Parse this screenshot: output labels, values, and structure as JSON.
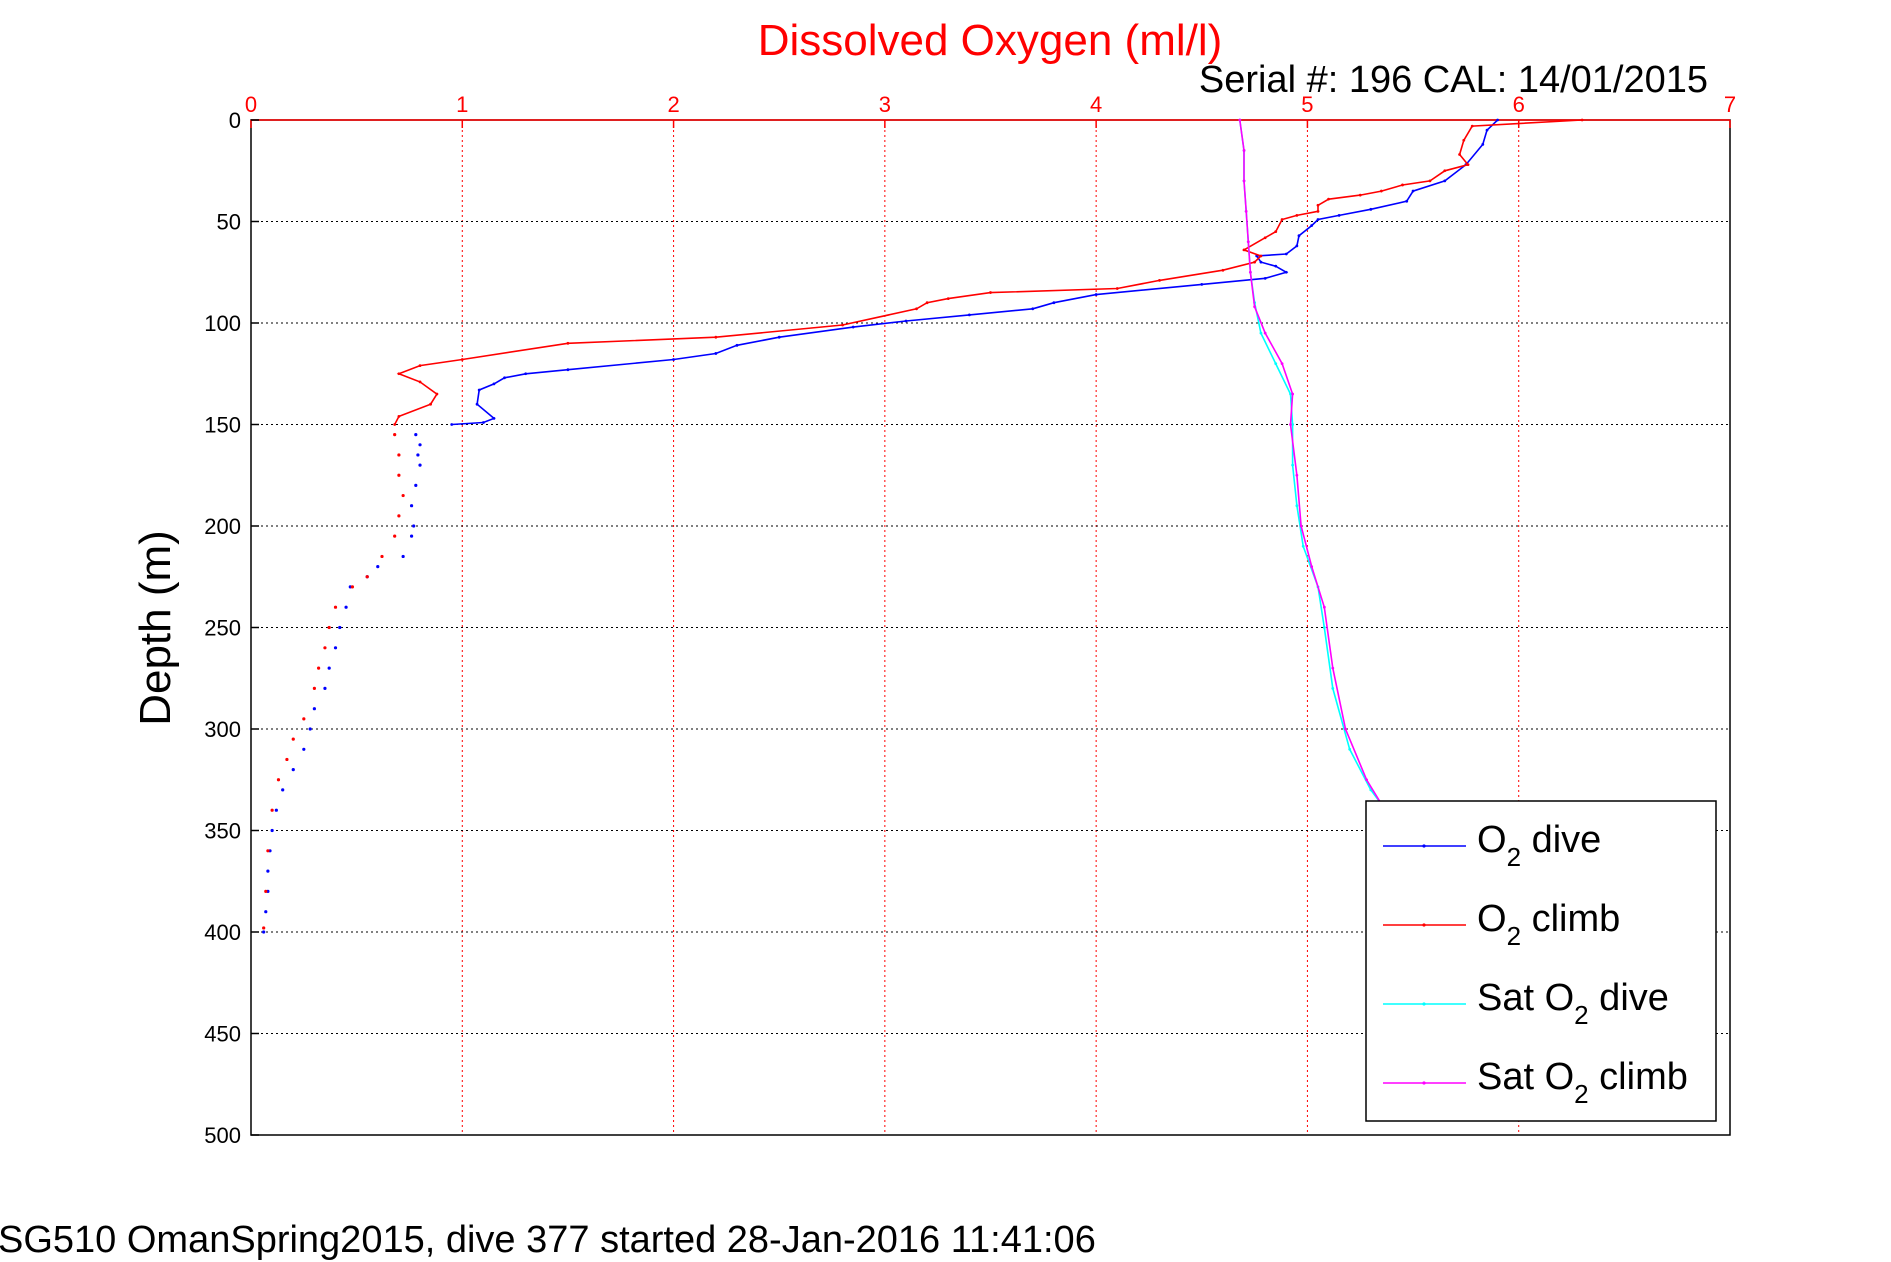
{
  "chart_data": {
    "type": "line",
    "title": "Dissolved Oxygen (ml/l)",
    "subtitle": "Serial #: 196  CAL: 14/01/2015",
    "ylabel": "Depth (m)",
    "xlabel": "",
    "xlim": [
      0,
      7
    ],
    "ylim": [
      0,
      500
    ],
    "y_reversed": true,
    "x_axis_position": "top",
    "grid": true,
    "legend_position": "bottom-right",
    "x_ticks": [
      0,
      1,
      2,
      3,
      4,
      5,
      6,
      7
    ],
    "y_ticks": [
      0,
      50,
      100,
      150,
      200,
      250,
      300,
      350,
      400,
      450,
      500
    ],
    "series": [
      {
        "name": "O2 dive",
        "legend_main": "O",
        "legend_sub": "2",
        "legend_rest": " dive",
        "color": "#0000ff",
        "style": "line",
        "points": [
          [
            5.9,
            0
          ],
          [
            5.85,
            5
          ],
          [
            5.83,
            12
          ],
          [
            5.75,
            22
          ],
          [
            5.65,
            30
          ],
          [
            5.5,
            35
          ],
          [
            5.47,
            40
          ],
          [
            5.3,
            44
          ],
          [
            5.15,
            47
          ],
          [
            5.05,
            49
          ],
          [
            5.02,
            52
          ],
          [
            4.96,
            57
          ],
          [
            4.95,
            62
          ],
          [
            4.9,
            66
          ],
          [
            4.76,
            67
          ],
          [
            4.78,
            70
          ],
          [
            4.85,
            72
          ],
          [
            4.9,
            75
          ],
          [
            4.8,
            78
          ],
          [
            4.5,
            81
          ],
          [
            4.0,
            86
          ],
          [
            3.8,
            90
          ],
          [
            3.7,
            93
          ],
          [
            3.4,
            96
          ],
          [
            3.1,
            99
          ],
          [
            2.85,
            102
          ],
          [
            2.5,
            107
          ],
          [
            2.3,
            111
          ],
          [
            2.2,
            115
          ],
          [
            2.0,
            118
          ],
          [
            1.5,
            123
          ],
          [
            1.3,
            125
          ],
          [
            1.2,
            127
          ],
          [
            1.15,
            130
          ],
          [
            1.08,
            133
          ],
          [
            1.07,
            140
          ],
          [
            1.15,
            147
          ],
          [
            1.1,
            149
          ],
          [
            0.95,
            150
          ]
        ]
      },
      {
        "name": "O2 dive",
        "color": "#0000ff",
        "style": "dots",
        "points": [
          [
            0.78,
            155
          ],
          [
            0.8,
            160
          ],
          [
            0.79,
            165
          ],
          [
            0.8,
            170
          ],
          [
            0.78,
            180
          ],
          [
            0.76,
            190
          ],
          [
            0.77,
            200
          ],
          [
            0.76,
            205
          ],
          [
            0.72,
            215
          ],
          [
            0.6,
            220
          ],
          [
            0.55,
            225
          ],
          [
            0.47,
            230
          ],
          [
            0.45,
            240
          ],
          [
            0.42,
            250
          ],
          [
            0.4,
            260
          ],
          [
            0.37,
            270
          ],
          [
            0.35,
            280
          ],
          [
            0.3,
            290
          ],
          [
            0.28,
            300
          ],
          [
            0.25,
            310
          ],
          [
            0.2,
            320
          ],
          [
            0.15,
            330
          ],
          [
            0.12,
            340
          ],
          [
            0.1,
            350
          ],
          [
            0.09,
            360
          ],
          [
            0.08,
            370
          ],
          [
            0.08,
            380
          ],
          [
            0.07,
            390
          ],
          [
            0.06,
            400
          ]
        ]
      },
      {
        "name": "O2 climb",
        "legend_main": "O",
        "legend_sub": "2",
        "legend_rest": " climb",
        "color": "#ff0000",
        "style": "line",
        "points": [
          [
            6.3,
            0
          ],
          [
            5.78,
            3
          ],
          [
            5.74,
            10
          ],
          [
            5.72,
            17
          ],
          [
            5.76,
            22
          ],
          [
            5.65,
            25
          ],
          [
            5.58,
            30
          ],
          [
            5.45,
            32
          ],
          [
            5.35,
            35
          ],
          [
            5.25,
            37
          ],
          [
            5.1,
            39
          ],
          [
            5.05,
            42
          ],
          [
            5.05,
            45
          ],
          [
            4.95,
            47
          ],
          [
            4.88,
            49
          ],
          [
            4.85,
            55
          ],
          [
            4.8,
            58
          ],
          [
            4.7,
            64
          ],
          [
            4.78,
            67
          ],
          [
            4.75,
            70
          ],
          [
            4.6,
            74
          ],
          [
            4.3,
            79
          ],
          [
            4.1,
            83
          ],
          [
            3.5,
            85
          ],
          [
            3.3,
            88
          ],
          [
            3.2,
            90
          ],
          [
            3.15,
            93
          ],
          [
            2.8,
            101
          ],
          [
            2.2,
            107
          ],
          [
            1.5,
            110
          ],
          [
            1.0,
            118
          ],
          [
            0.8,
            121
          ],
          [
            0.7,
            125
          ],
          [
            0.8,
            129
          ],
          [
            0.88,
            135
          ],
          [
            0.85,
            140
          ],
          [
            0.7,
            146
          ],
          [
            0.68,
            150
          ]
        ]
      },
      {
        "name": "O2 climb",
        "color": "#ff0000",
        "style": "dots",
        "points": [
          [
            0.68,
            155
          ],
          [
            0.7,
            165
          ],
          [
            0.7,
            175
          ],
          [
            0.72,
            185
          ],
          [
            0.7,
            195
          ],
          [
            0.68,
            205
          ],
          [
            0.62,
            215
          ],
          [
            0.55,
            225
          ],
          [
            0.48,
            230
          ],
          [
            0.4,
            240
          ],
          [
            0.37,
            250
          ],
          [
            0.35,
            260
          ],
          [
            0.32,
            270
          ],
          [
            0.3,
            280
          ],
          [
            0.25,
            295
          ],
          [
            0.2,
            305
          ],
          [
            0.17,
            315
          ],
          [
            0.13,
            325
          ],
          [
            0.1,
            340
          ],
          [
            0.08,
            360
          ],
          [
            0.07,
            380
          ],
          [
            0.06,
            398
          ]
        ]
      },
      {
        "name": "Sat O2 dive",
        "legend_main": "Sat O",
        "legend_sub": "2",
        "legend_rest": " dive",
        "color": "#00ffff",
        "style": "line",
        "points": [
          [
            4.68,
            0
          ],
          [
            4.7,
            15
          ],
          [
            4.7,
            30
          ],
          [
            4.71,
            45
          ],
          [
            4.72,
            60
          ],
          [
            4.73,
            75
          ],
          [
            4.75,
            90
          ],
          [
            4.78,
            105
          ],
          [
            4.85,
            120
          ],
          [
            4.92,
            135
          ],
          [
            4.93,
            150
          ],
          [
            4.93,
            170
          ],
          [
            4.95,
            190
          ],
          [
            4.98,
            210
          ],
          [
            5.05,
            230
          ],
          [
            5.08,
            250
          ],
          [
            5.12,
            280
          ],
          [
            5.2,
            310
          ],
          [
            5.3,
            330
          ],
          [
            5.35,
            337
          ]
        ]
      },
      {
        "name": "Sat O2 climb",
        "legend_main": "Sat O",
        "legend_sub": "2",
        "legend_rest": " climb",
        "color": "#ff00ff",
        "style": "line",
        "points": [
          [
            4.68,
            0
          ],
          [
            4.7,
            15
          ],
          [
            4.7,
            30
          ],
          [
            4.71,
            45
          ],
          [
            4.72,
            60
          ],
          [
            4.73,
            75
          ],
          [
            4.75,
            92
          ],
          [
            4.8,
            105
          ],
          [
            4.88,
            120
          ],
          [
            4.93,
            135
          ],
          [
            4.92,
            150
          ],
          [
            4.95,
            175
          ],
          [
            4.97,
            200
          ],
          [
            5.02,
            220
          ],
          [
            5.08,
            240
          ],
          [
            5.12,
            270
          ],
          [
            5.18,
            300
          ],
          [
            5.28,
            325
          ],
          [
            5.35,
            337
          ]
        ]
      }
    ]
  },
  "footer": "SG510 OmanSpring2015, dive 377 started 28-Jan-2016 11:41:06"
}
